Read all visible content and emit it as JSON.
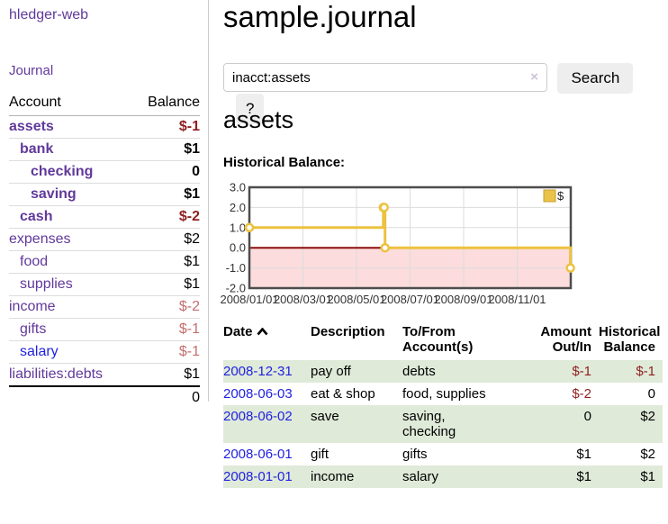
{
  "app": {
    "title": "hledger-web",
    "nav_journal": "Journal"
  },
  "sidebar": {
    "account_header": "Account",
    "balance_header": "Balance",
    "accounts": [
      {
        "name": "assets",
        "indent": 0,
        "bold": true,
        "balance": "$-1",
        "negative": true,
        "blue": false
      },
      {
        "name": "bank",
        "indent": 1,
        "bold": true,
        "balance": "$1",
        "negative": false,
        "blue": false
      },
      {
        "name": "checking",
        "indent": 2,
        "bold": true,
        "balance": "0",
        "negative": false,
        "blue": false
      },
      {
        "name": "saving",
        "indent": 2,
        "bold": true,
        "balance": "$1",
        "negative": false,
        "blue": false
      },
      {
        "name": "cash",
        "indent": 1,
        "bold": true,
        "balance": "$-2",
        "negative": true,
        "blue": false
      },
      {
        "name": "expenses",
        "indent": 0,
        "bold": false,
        "balance": "$2",
        "negative": false,
        "blue": false
      },
      {
        "name": "food",
        "indent": 1,
        "bold": false,
        "balance": "$1",
        "negative": false,
        "blue": false
      },
      {
        "name": "supplies",
        "indent": 1,
        "bold": false,
        "balance": "$1",
        "negative": false,
        "blue": false
      },
      {
        "name": "income",
        "indent": 0,
        "bold": false,
        "balance": "$-2",
        "negative": true,
        "blue": false
      },
      {
        "name": "gifts",
        "indent": 1,
        "bold": false,
        "balance": "$-1",
        "negative": true,
        "blue": false
      },
      {
        "name": "salary",
        "indent": 1,
        "bold": false,
        "balance": "$-1",
        "negative": true,
        "blue": true
      },
      {
        "name": "liabilities:debts",
        "indent": 0,
        "bold": false,
        "balance": "$1",
        "negative": false,
        "blue": false
      }
    ],
    "total": "0"
  },
  "header": {
    "title": "sample.journal"
  },
  "search": {
    "query": "inacct:assets",
    "clear_icon": "×",
    "button_label": "Search",
    "help_label": "?"
  },
  "account_page": {
    "heading": "assets",
    "chart_label": "Historical Balance:"
  },
  "chart_data": {
    "type": "line",
    "step": true,
    "title": "Historical Balance",
    "series": [
      {
        "name": "$",
        "points": [
          [
            "2008-01-01",
            1
          ],
          [
            "2008-06-01",
            2
          ],
          [
            "2008-06-02",
            2
          ],
          [
            "2008-06-03",
            0
          ],
          [
            "2008-12-31",
            -1
          ]
        ]
      }
    ],
    "ylim": [
      -2,
      3
    ],
    "ytick_labels": [
      "3.0",
      "2.0",
      "1.0",
      "0.0",
      "-1.0",
      "-2.0"
    ],
    "yticks": [
      3,
      2,
      1,
      0,
      -1,
      -2
    ],
    "xtick_labels": [
      "2008/01/01",
      "2008/03/01",
      "2008/05/01",
      "2008/07/01",
      "2008/09/01",
      "2008/11/01"
    ],
    "xticks_months": [
      0,
      2,
      4,
      6,
      8,
      10
    ],
    "x_range_months": [
      0,
      12
    ],
    "grid": true,
    "legend": {
      "label": "$",
      "position": "top-right"
    },
    "colors": {
      "series": "#edc240",
      "marker_fill": "#ffffff",
      "zero_line": "#8b0f0f",
      "negative_fill": "#fcdcdc",
      "gridline": "#dcdcdc",
      "border": "#4d4d4d",
      "legend_swatch": "#e9c34a",
      "legend_swatch_border": "#c8a02a"
    }
  },
  "register_table": {
    "columns": [
      "Date",
      "Description",
      "To/From\nAccount(s)",
      "Amount\nOut/In",
      "Historical\nBalance"
    ],
    "sort_column": "Date",
    "sort_direction": "ascending",
    "rows": [
      {
        "date": "2008-12-31",
        "description": "pay off",
        "accounts": "debts",
        "amount": "$-1",
        "amount_negative": true,
        "balance": "$-1",
        "balance_negative": true,
        "shaded": true
      },
      {
        "date": "2008-06-03",
        "description": "eat & shop",
        "accounts": "food, supplies",
        "amount": "$-2",
        "amount_negative": true,
        "balance": "0",
        "balance_negative": false,
        "shaded": false
      },
      {
        "date": "2008-06-02",
        "description": "save",
        "accounts": "saving,\nchecking",
        "amount": "0",
        "amount_negative": false,
        "balance": "$2",
        "balance_negative": false,
        "shaded": true
      },
      {
        "date": "2008-06-01",
        "description": "gift",
        "accounts": "gifts",
        "amount": "$1",
        "amount_negative": false,
        "balance": "$2",
        "balance_negative": false,
        "shaded": false
      },
      {
        "date": "2008-01-01",
        "description": "income",
        "accounts": "salary",
        "amount": "$1",
        "amount_negative": false,
        "balance": "$1",
        "balance_negative": false,
        "shaded": true
      }
    ]
  },
  "colors": {
    "link_purple": "#61399b",
    "link_blue": "#2222e0",
    "negative_strong": "#8f1f1f",
    "negative_soft": "#c46e6e",
    "row_green": "#dfead9",
    "button_bg": "#eeeeee"
  }
}
